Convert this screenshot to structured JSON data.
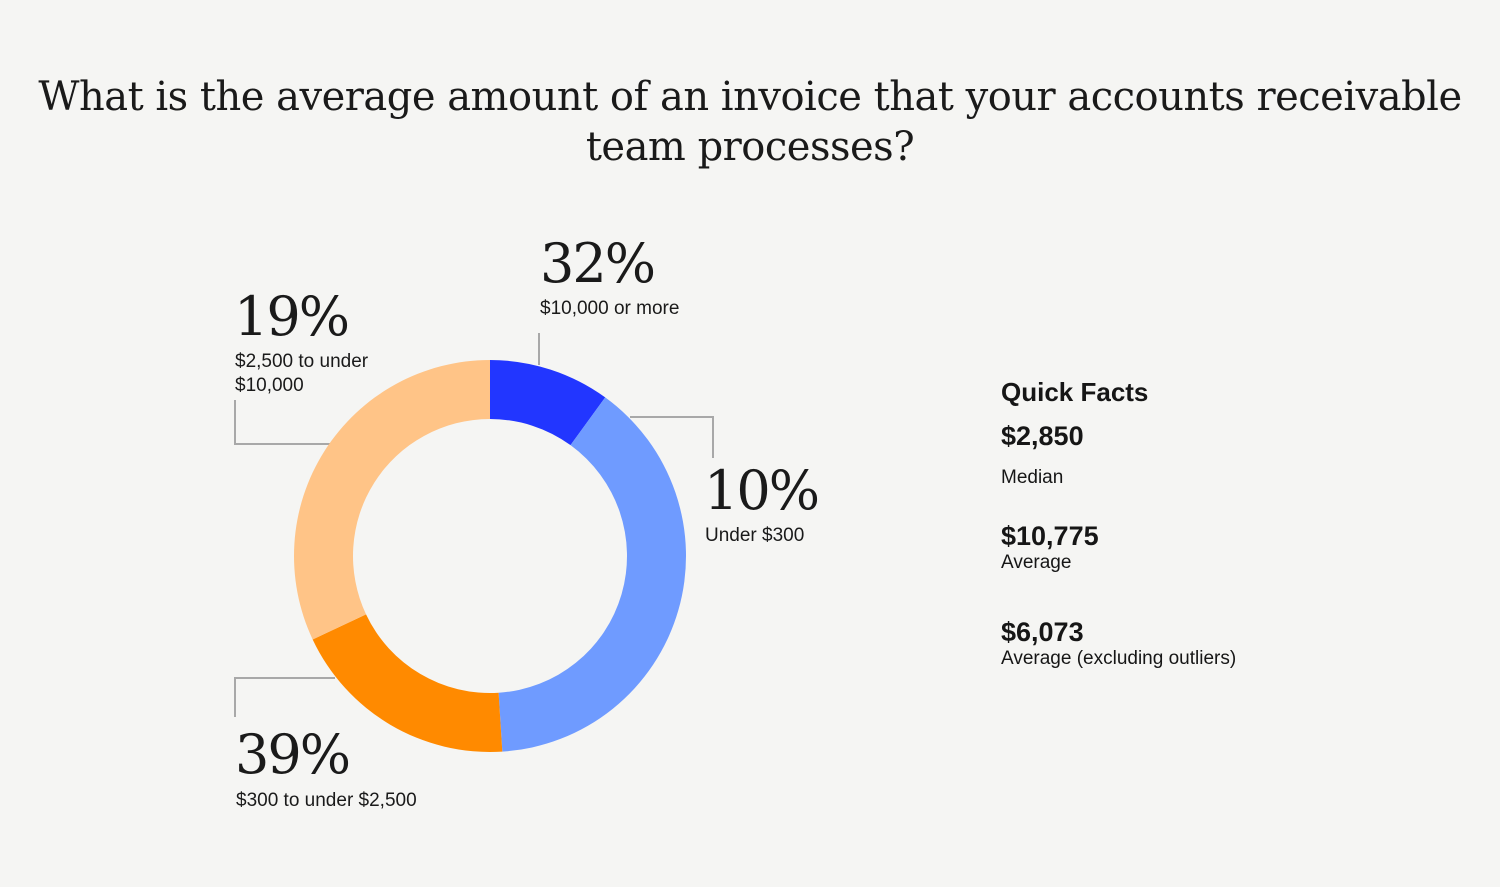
{
  "chart_data": {
    "type": "pie",
    "title": "What is the average amount of an invoice that your accounts receivable team processes?",
    "categories": [
      "Under $300",
      "$300 to under $2,500",
      "$2,500 to under $10,000",
      "$10,000 or more"
    ],
    "values": [
      10,
      39,
      19,
      32
    ],
    "value_labels": [
      "10%",
      "39%",
      "19%",
      "32%"
    ],
    "colors": [
      "#2236ff",
      "#6f9bff",
      "#ff8a00",
      "#ffc487"
    ],
    "donut": true
  },
  "quick_facts": {
    "title": "Quick Facts",
    "items": [
      {
        "value": "$2,850",
        "label": "Median"
      },
      {
        "value": "$10,775",
        "label": "Average"
      },
      {
        "value": "$6,073",
        "label": "Average (excluding outliers)"
      }
    ]
  }
}
